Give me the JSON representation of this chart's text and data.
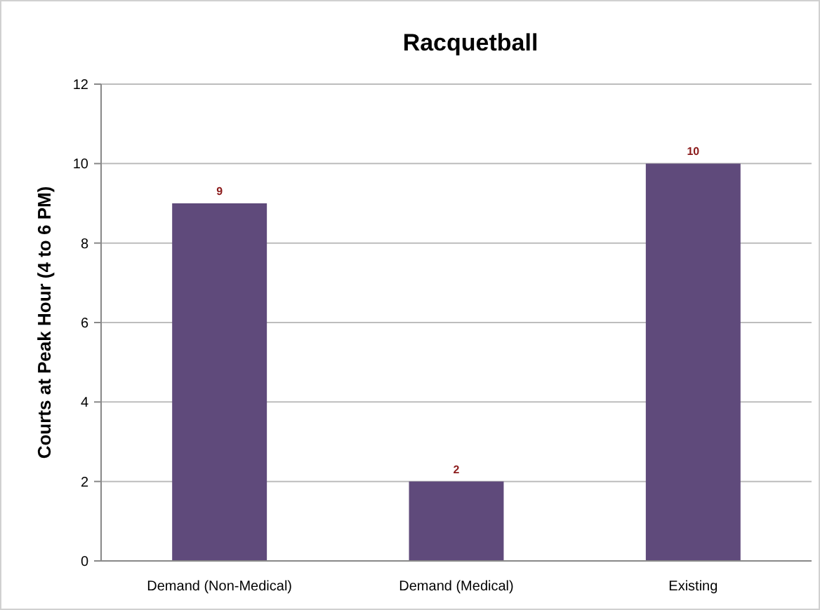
{
  "chart_data": {
    "type": "bar",
    "title": "Racquetball",
    "ylabel": "Courts at Peak Hour (4 to 6 PM)",
    "categories": [
      "Demand (Non-Medical)",
      "Demand (Medical)",
      "Existing"
    ],
    "values": [
      9,
      2,
      10
    ],
    "color": "#5f4a7b",
    "ylim": [
      0,
      12
    ],
    "yticks": [
      0,
      2,
      4,
      6,
      8,
      10,
      12
    ],
    "grid": "y",
    "data_labels": true
  }
}
